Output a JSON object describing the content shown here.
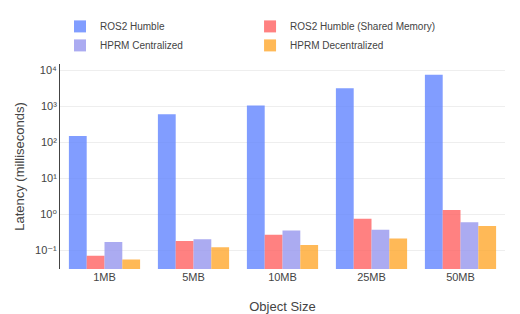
{
  "chart_data": {
    "type": "bar",
    "categories": [
      "1MB",
      "5MB",
      "10MB",
      "25MB",
      "50MB"
    ],
    "series": [
      {
        "name": "ROS2 Humble",
        "color": "#6688FF",
        "values": [
          150,
          600,
          1050,
          3200,
          7500
        ]
      },
      {
        "name": "ROS2 Humble (Shared Memory)",
        "color": "#FF6666",
        "values": [
          0.07,
          0.18,
          0.27,
          0.75,
          1.3
        ]
      },
      {
        "name": "HPRM Centralized",
        "color": "#9999EE",
        "values": [
          0.17,
          0.2,
          0.35,
          0.37,
          0.6
        ]
      },
      {
        "name": "HPRM Decentralized",
        "color": "#FFAA33",
        "values": [
          0.055,
          0.12,
          0.14,
          0.21,
          0.47
        ]
      }
    ],
    "xlabel": "Object Size",
    "ylabel": "Latency (milliseconds)",
    "log": "y",
    "ylim": [
      0.03,
      15000
    ],
    "yticks": [
      {
        "value": 0.1,
        "label": "10⁻¹"
      },
      {
        "value": 1,
        "label": "10⁰"
      },
      {
        "value": 10,
        "label": "10¹"
      },
      {
        "value": 100,
        "label": "10²"
      },
      {
        "value": 1000,
        "label": "10³"
      },
      {
        "value": 10000,
        "label": "10⁴"
      }
    ],
    "grid": true,
    "legend": "upper left"
  }
}
